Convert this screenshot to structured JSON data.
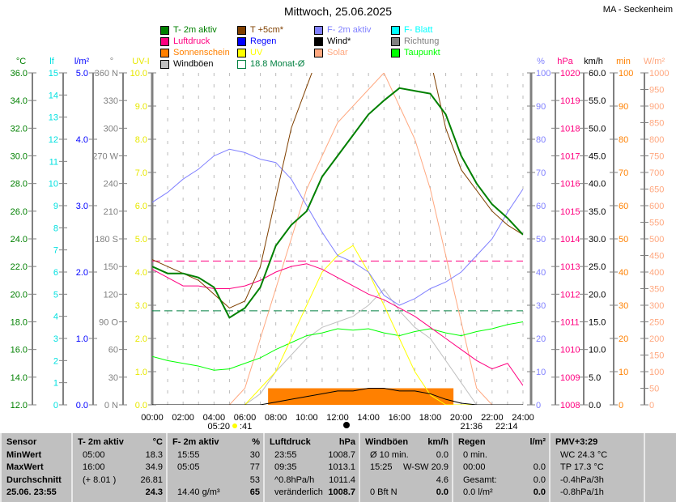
{
  "header": {
    "title": "Mittwoch, 25.06.2025",
    "station": "MA - Seckenheim"
  },
  "legend": [
    {
      "label": "T- 2m aktiv",
      "color": "#008000"
    },
    {
      "label": "T +5cm*",
      "color": "#804000"
    },
    {
      "label": "F- 2m aktiv",
      "color": "#8080ff"
    },
    {
      "label": "F- Blatt",
      "color": "#00ffff"
    },
    {
      "label": "Luftdruck",
      "color": "#ff0080"
    },
    {
      "label": "Regen",
      "color": "#0000ff"
    },
    {
      "label": "Wind*",
      "color": "#000000"
    },
    {
      "label": "Richtung",
      "color": "#808080"
    },
    {
      "label": "Sonnenschein",
      "color": "#ff8000"
    },
    {
      "label": "UV",
      "color": "#ffff00"
    },
    {
      "label": "Solar",
      "color": "#ffa880"
    },
    {
      "label": "Taupunkt",
      "color": "#00ff00"
    },
    {
      "label": "Windböen",
      "color": "#c0c0c0"
    },
    {
      "label": "18.8 Monat-Ø",
      "color": "#008040"
    }
  ],
  "chart_data": {
    "type": "line",
    "title": "Mittwoch, 25.06.2025",
    "x_ticks": [
      "00:00",
      "02:00",
      "04:00",
      "06:00",
      "08:00",
      "10:00",
      "12:00",
      "14:00",
      "16:00",
      "18:00",
      "20:00",
      "22:00",
      "24:00"
    ],
    "x_hours": [
      0,
      1,
      2,
      3,
      4,
      5,
      6,
      7,
      8,
      9,
      10,
      11,
      12,
      13,
      14,
      15,
      16,
      17,
      18,
      19,
      20,
      21,
      22,
      23,
      24
    ],
    "axes": [
      {
        "unit": "°C",
        "min": 12,
        "max": 36,
        "labels": [
          "12.0",
          "14.0",
          "16.0",
          "18.0",
          "20.0",
          "22.0",
          "24.0",
          "26.0",
          "28.0",
          "30.0",
          "32.0",
          "34.0",
          "36.0"
        ],
        "color": "#008000"
      },
      {
        "unit": "lf",
        "min": 0,
        "max": 15,
        "labels": [
          "0",
          "1",
          "2",
          "3",
          "4",
          "5",
          "6",
          "7",
          "8",
          "9",
          "10",
          "11",
          "12",
          "13",
          "14",
          "15"
        ],
        "color": "#00e0e0"
      },
      {
        "unit": "l/m²",
        "min": 0,
        "max": 5,
        "labels": [
          "0.0",
          "1.0",
          "2.0",
          "3.0",
          "4.0",
          "5.0"
        ],
        "color": "#0000ff"
      },
      {
        "unit": "°",
        "min": 0,
        "max": 360,
        "labels": [
          "0 N",
          "30",
          "60",
          "90 O",
          "120",
          "150",
          "180 S",
          "210",
          "240",
          "270 W",
          "300",
          "330",
          "360 N"
        ],
        "color": "#808080"
      },
      {
        "unit": "UV-I",
        "min": 0,
        "max": 10,
        "labels": [
          "0.0",
          "1.0",
          "2.0",
          "3.0",
          "4.0",
          "5.0",
          "6.0",
          "7.0",
          "8.0",
          "9.0",
          "10.0"
        ],
        "color": "#e8e800"
      },
      {
        "unit": "%",
        "min": 0,
        "max": 100,
        "labels": [
          "0",
          "10",
          "20",
          "30",
          "40",
          "50",
          "60",
          "70",
          "80",
          "90",
          "100"
        ],
        "color": "#8080ff"
      },
      {
        "unit": "hPa",
        "min": 1008,
        "max": 1020,
        "labels": [
          "1008",
          "1009",
          "1010",
          "1011",
          "1012",
          "1013",
          "1014",
          "1015",
          "1016",
          "1017",
          "1018",
          "1019",
          "1020"
        ],
        "color": "#ff0080"
      },
      {
        "unit": "km/h",
        "min": 0,
        "max": 60,
        "labels": [
          "0.0",
          "5.0",
          "10.0",
          "15.0",
          "20.0",
          "25.0",
          "30.0",
          "35.0",
          "40.0",
          "45.0",
          "50.0",
          "55.0",
          "60.0"
        ],
        "color": "#000000"
      },
      {
        "unit": "min",
        "min": 0,
        "max": 100,
        "labels": [
          "0",
          "10",
          "20",
          "30",
          "40",
          "50",
          "60",
          "70",
          "80",
          "90",
          "100"
        ],
        "color": "#ff8000"
      },
      {
        "unit": "W/m²",
        "min": 0,
        "max": 1000,
        "labels": [
          "0",
          "50",
          "100",
          "150",
          "200",
          "250",
          "300",
          "350",
          "400",
          "450",
          "500",
          "550",
          "600",
          "650",
          "700",
          "750",
          "800",
          "850",
          "900",
          "950",
          "1000"
        ],
        "color": "#ffa880"
      }
    ],
    "series": [
      {
        "name": "T- 2m aktiv",
        "axis": "°C",
        "color": "#008000",
        "values": [
          22,
          21.5,
          21.5,
          21.2,
          20.5,
          18.3,
          19,
          20.5,
          23.5,
          25,
          26,
          28.5,
          30,
          31.5,
          33,
          34,
          34.9,
          34.7,
          34.5,
          33,
          30,
          28,
          26.5,
          25.5,
          24.3
        ]
      },
      {
        "name": "T +5cm*",
        "axis": "°C",
        "color": "#804000",
        "values": [
          22.5,
          22,
          21.5,
          21,
          20,
          19,
          19.5,
          22,
          27,
          32,
          35,
          38,
          40,
          42,
          44,
          45,
          45,
          44,
          37,
          32,
          29,
          27.5,
          26,
          25,
          24.3
        ]
      },
      {
        "name": "F- 2m aktiv",
        "axis": "%",
        "color": "#8080ff",
        "values": [
          61,
          64,
          68,
          71,
          75,
          77,
          76,
          74,
          73,
          68,
          60,
          52,
          45,
          43,
          40,
          33,
          30,
          32,
          35,
          37,
          40,
          45,
          50,
          58,
          65
        ]
      },
      {
        "name": "Luftdruck",
        "axis": "hPa",
        "color": "#ff0080",
        "values": [
          1012.9,
          1012.6,
          1012.3,
          1012.3,
          1012.2,
          1012.2,
          1012.3,
          1012.5,
          1012.8,
          1013.0,
          1013.1,
          1012.9,
          1012.6,
          1012.3,
          1012.0,
          1011.8,
          1011.5,
          1011.2,
          1010.8,
          1010.4,
          1010.0,
          1009.6,
          1009.3,
          1009.5,
          1008.7
        ]
      },
      {
        "name": "Taupunkt",
        "axis": "°C",
        "color": "#00ff00",
        "values": [
          15.5,
          15.2,
          15,
          14.8,
          14.5,
          14.6,
          15,
          15.4,
          16,
          16.5,
          17,
          17.2,
          17.5,
          17.4,
          17.5,
          17.2,
          17,
          17.3,
          17.5,
          17.2,
          17,
          17.3,
          17.5,
          17.8,
          18
        ]
      },
      {
        "name": "Solar",
        "axis": "W/m²",
        "color": "#ffa880",
        "values": [
          0,
          0,
          0,
          0,
          0,
          0,
          50,
          200,
          350,
          500,
          650,
          750,
          850,
          900,
          950,
          1000,
          900,
          800,
          650,
          450,
          250,
          50,
          0,
          0,
          0
        ]
      },
      {
        "name": "UV",
        "axis": "UV-I",
        "color": "#ffff00",
        "values": [
          0,
          0,
          0,
          0,
          0,
          0,
          0,
          0.5,
          1,
          2,
          3,
          4,
          4.5,
          4.8,
          4,
          3,
          2,
          1,
          0.3,
          0,
          0,
          0,
          0,
          0,
          0
        ]
      },
      {
        "name": "Windböen",
        "axis": "km/h",
        "color": "#c0c0c0",
        "values": [
          0,
          0,
          0,
          0,
          0,
          0,
          0,
          2,
          6,
          9,
          12,
          14,
          15,
          16,
          18,
          20.9,
          17,
          14,
          12,
          8,
          4,
          0,
          0,
          0,
          0
        ]
      },
      {
        "name": "Wind*",
        "axis": "km/h",
        "color": "#000000",
        "values": [
          0,
          0,
          0,
          0,
          0,
          0,
          0,
          0,
          0.5,
          1,
          1.5,
          2,
          2.5,
          2.5,
          3,
          3,
          2.5,
          2.5,
          2,
          1,
          0.3,
          0,
          0,
          0,
          0
        ]
      }
    ],
    "sunshine": {
      "axis": "min",
      "color": "#ff8000",
      "start": "07:30",
      "end": "19:30",
      "value": 5
    },
    "reference_lines": [
      {
        "name": "18.8 Monat-Ø",
        "axis": "°C",
        "value": 18.8,
        "color": "#008040"
      },
      {
        "axis": "hPa",
        "value": 1013.2,
        "color": "#ff0080"
      }
    ],
    "sun": {
      "sunrise": "05:20",
      "sun_symbol_suffix": ":41",
      "sunset": "21:36",
      "moon": "22:14"
    }
  },
  "table": {
    "columns": [
      {
        "head": [
          "Sensor",
          ""
        ],
        "rows": [
          [
            "MinWert",
            ""
          ],
          [
            "MaxWert",
            ""
          ],
          [
            "Durchschnitt",
            ""
          ],
          [
            "25.06. 23:55",
            ""
          ]
        ]
      },
      {
        "head": [
          "T- 2m aktiv",
          "°C"
        ],
        "rows": [
          [
            "05:00",
            "18.3"
          ],
          [
            "16:00",
            "34.9"
          ],
          [
            "(+ 8.01 )",
            "26.81"
          ],
          [
            "",
            "24.3"
          ]
        ]
      },
      {
        "head": [
          "F- 2m aktiv",
          "%"
        ],
        "rows": [
          [
            "15:55",
            "30"
          ],
          [
            "05:05",
            "77"
          ],
          [
            "",
            "53"
          ],
          [
            "14.40 g/m³",
            "65"
          ]
        ]
      },
      {
        "head": [
          "Luftdruck",
          "hPa"
        ],
        "rows": [
          [
            "23:55",
            "1008.7"
          ],
          [
            "09:35",
            "1013.1"
          ],
          [
            "^0.8hPa/h",
            "1011.4"
          ],
          [
            "veränderlich",
            "1008.7"
          ]
        ]
      },
      {
        "head": [
          "Windböen",
          "km/h"
        ],
        "rows": [
          [
            "Ø 10 min.",
            "0.0"
          ],
          [
            "15:25",
            "W-SW 20.9"
          ],
          [
            "",
            "4.6"
          ],
          [
            "0 Bft N",
            "0.0"
          ]
        ]
      },
      {
        "head": [
          "Regen",
          "l/m²"
        ],
        "rows": [
          [
            "0 min.",
            ""
          ],
          [
            "00:00",
            "0.0"
          ],
          [
            "Gesamt:",
            "0.0"
          ],
          [
            "0.0 l/m²",
            "0.0"
          ]
        ]
      },
      {
        "head": [
          "PMV+3:29",
          ""
        ],
        "rows": [
          [
            "WC 24.3 °C",
            ""
          ],
          [
            "TP 17.3 °C",
            ""
          ],
          [
            "-0.4hPa/3h",
            ""
          ],
          [
            "-0.8hPa/1h",
            ""
          ]
        ]
      }
    ]
  }
}
